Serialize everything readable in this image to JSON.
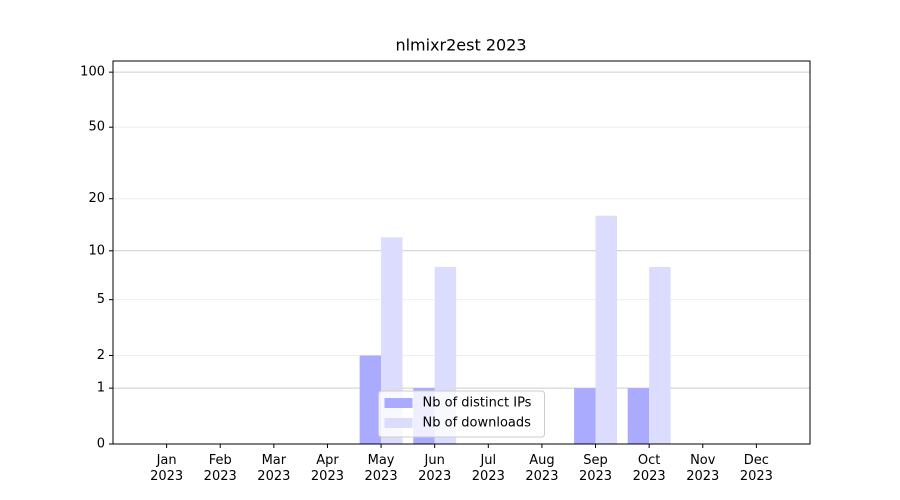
{
  "chart_data": {
    "type": "bar",
    "title": "nlmixr2est 2023",
    "categories": [
      "Jan 2023",
      "Feb 2023",
      "Mar 2023",
      "Apr 2023",
      "May 2023",
      "Jun 2023",
      "Jul 2023",
      "Aug 2023",
      "Sep 2023",
      "Oct 2023",
      "Nov 2023",
      "Dec 2023"
    ],
    "series": [
      {
        "name": "Nb of distinct IPs",
        "color": "#aaaaff",
        "values": [
          0,
          0,
          0,
          0,
          2,
          1,
          0,
          0,
          1,
          1,
          0,
          0
        ]
      },
      {
        "name": "Nb of downloads",
        "color": "#dcdcfe",
        "values": [
          0,
          0,
          0,
          0,
          12,
          8,
          0,
          0,
          16,
          8,
          0,
          0
        ]
      }
    ],
    "yscale": "log1p",
    "ylim": [
      0,
      115
    ],
    "yticks": [
      0,
      1,
      2,
      5,
      10,
      20,
      50,
      100
    ],
    "grid": true,
    "legend": "lower center"
  }
}
